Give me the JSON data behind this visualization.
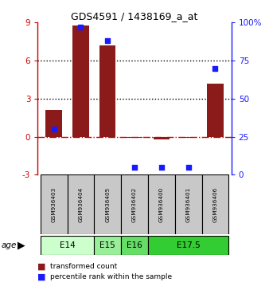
{
  "title": "GDS4591 / 1438169_a_at",
  "samples": [
    "GSM936403",
    "GSM936404",
    "GSM936405",
    "GSM936402",
    "GSM936400",
    "GSM936401",
    "GSM936406"
  ],
  "transformed_count": [
    2.1,
    8.8,
    7.2,
    -0.1,
    -0.2,
    -0.1,
    4.2
  ],
  "percentile_rank": [
    30,
    97,
    88,
    5,
    5,
    5,
    70
  ],
  "ylim_left": [
    -3,
    9
  ],
  "ylim_right": [
    0,
    100
  ],
  "yticks_left": [
    -3,
    0,
    3,
    6,
    9
  ],
  "yticks_right": [
    0,
    25,
    50,
    75,
    100
  ],
  "ytick_labels_right": [
    "0",
    "25",
    "50",
    "75",
    "100%"
  ],
  "bar_color": "#8B1A1A",
  "dot_color": "#1A1AFF",
  "zero_line_color": "#CC0000",
  "grid_color": "black",
  "age_groups": [
    {
      "label": "E14",
      "start": 0,
      "end": 1,
      "color": "#CCFFCC"
    },
    {
      "label": "E15",
      "start": 2,
      "end": 2,
      "color": "#99EE99"
    },
    {
      "label": "E16",
      "start": 3,
      "end": 3,
      "color": "#66DD66"
    },
    {
      "label": "E17.5",
      "start": 4,
      "end": 6,
      "color": "#33CC33"
    }
  ],
  "legend_red_label": "transformed count",
  "legend_blue_label": "percentile rank within the sample",
  "bar_width": 0.6,
  "dot_size": 25
}
